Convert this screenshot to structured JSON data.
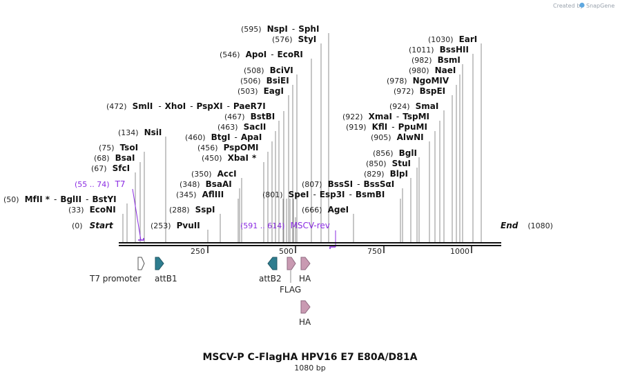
{
  "branding": {
    "created_by": "Created by",
    "product": "SnapGene"
  },
  "plasmid": {
    "name": "MSCV-P C-FlagHA HPV16 E7 E80A/D81A",
    "length_label": "1080 bp",
    "start": {
      "pos": "(0)",
      "label": "Start"
    },
    "end": {
      "pos": "(1080)",
      "label": "End"
    }
  },
  "scale": {
    "ticks": [
      "250",
      "500",
      "750",
      "1000"
    ]
  },
  "colors": {
    "primer": "#8a2be2",
    "teal": "#2e7d8f",
    "pink": "#c99ab2",
    "white": "#ffffff",
    "line": "#8c8c8c"
  },
  "enzymes": [
    {
      "pos": "(595)",
      "names": [
        "NspI",
        "SphI"
      ]
    },
    {
      "pos": "(576)",
      "names": [
        "StyI"
      ]
    },
    {
      "pos": "(546)",
      "names": [
        "ApoI",
        "EcoRI"
      ]
    },
    {
      "pos": "(508)",
      "names": [
        "BciVI"
      ]
    },
    {
      "pos": "(506)",
      "names": [
        "BsiEI"
      ]
    },
    {
      "pos": "(503)",
      "names": [
        "EagI"
      ]
    },
    {
      "pos": "(472)",
      "names": [
        "SmlI",
        "XhoI",
        "PspXI",
        "PaeR7I"
      ]
    },
    {
      "pos": "(467)",
      "names": [
        "BstBI"
      ]
    },
    {
      "pos": "(463)",
      "names": [
        "SacII"
      ]
    },
    {
      "pos": "(460)",
      "names": [
        "BtgI",
        "ApaI"
      ]
    },
    {
      "pos": "(456)",
      "names": [
        "PspOMI"
      ]
    },
    {
      "pos": "(450)",
      "names": [
        "XbaI"
      ],
      "star": "*"
    },
    {
      "pos": "(134)",
      "names": [
        "NsiI"
      ]
    },
    {
      "pos": "(75)",
      "names": [
        "TsoI"
      ]
    },
    {
      "pos": "(68)",
      "names": [
        "BsaI"
      ]
    },
    {
      "pos": "(67)",
      "names": [
        "SfcI"
      ]
    },
    {
      "pos": "(50)",
      "names": [
        "MfII",
        "BglII",
        "BstYI"
      ],
      "star": "*"
    },
    {
      "pos": "(33)",
      "names": [
        "EcoNI"
      ]
    },
    {
      "pos": "(253)",
      "names": [
        "PvuII"
      ]
    },
    {
      "pos": "(288)",
      "names": [
        "SspI"
      ]
    },
    {
      "pos": "(350)",
      "names": [
        "AccI"
      ]
    },
    {
      "pos": "(348)",
      "names": [
        "BsaAI"
      ]
    },
    {
      "pos": "(345)",
      "names": [
        "AflIII"
      ]
    },
    {
      "pos": "(801)",
      "names": [
        "SpeI",
        "Esp3I",
        "BsmBI"
      ]
    },
    {
      "pos": "(807)",
      "names": [
        "BssSI",
        "BssSαI"
      ]
    },
    {
      "pos": "(666)",
      "names": [
        "AgeI"
      ]
    },
    {
      "pos": "(1030)",
      "names": [
        "EarI"
      ]
    },
    {
      "pos": "(1011)",
      "names": [
        "BssHII"
      ]
    },
    {
      "pos": "(982)",
      "names": [
        "BsmI"
      ]
    },
    {
      "pos": "(980)",
      "names": [
        "NaeI"
      ]
    },
    {
      "pos": "(978)",
      "names": [
        "NgoMIV"
      ]
    },
    {
      "pos": "(972)",
      "names": [
        "BspEI"
      ]
    },
    {
      "pos": "(924)",
      "names": [
        "SmaI"
      ]
    },
    {
      "pos": "(922)",
      "names": [
        "XmaI",
        "TspMI"
      ]
    },
    {
      "pos": "(919)",
      "names": [
        "KflI",
        "PpuMI"
      ]
    },
    {
      "pos": "(905)",
      "names": [
        "AlwNI"
      ]
    },
    {
      "pos": "(856)",
      "names": [
        "BglI"
      ]
    },
    {
      "pos": "(850)",
      "names": [
        "StuI"
      ]
    },
    {
      "pos": "(829)",
      "names": [
        "BlpI"
      ]
    }
  ],
  "primers": [
    {
      "range": "(55 .. 74)",
      "name": "T7",
      "start": 55,
      "end": 74
    },
    {
      "range": "(591 .. 614)",
      "name": "MSCV-rev",
      "start": 591,
      "end": 614
    }
  ],
  "features": [
    {
      "name": "T7 promoter",
      "color": "white",
      "direction": "right"
    },
    {
      "name": "attB1",
      "color": "teal",
      "direction": "right"
    },
    {
      "name": "attB2",
      "color": "teal",
      "direction": "left"
    },
    {
      "name": "FLAG",
      "color": "pink",
      "direction": "right"
    },
    {
      "name": "HA",
      "color": "pink",
      "direction": "right"
    },
    {
      "name": "HA",
      "color": "pink",
      "direction": "right"
    }
  ]
}
